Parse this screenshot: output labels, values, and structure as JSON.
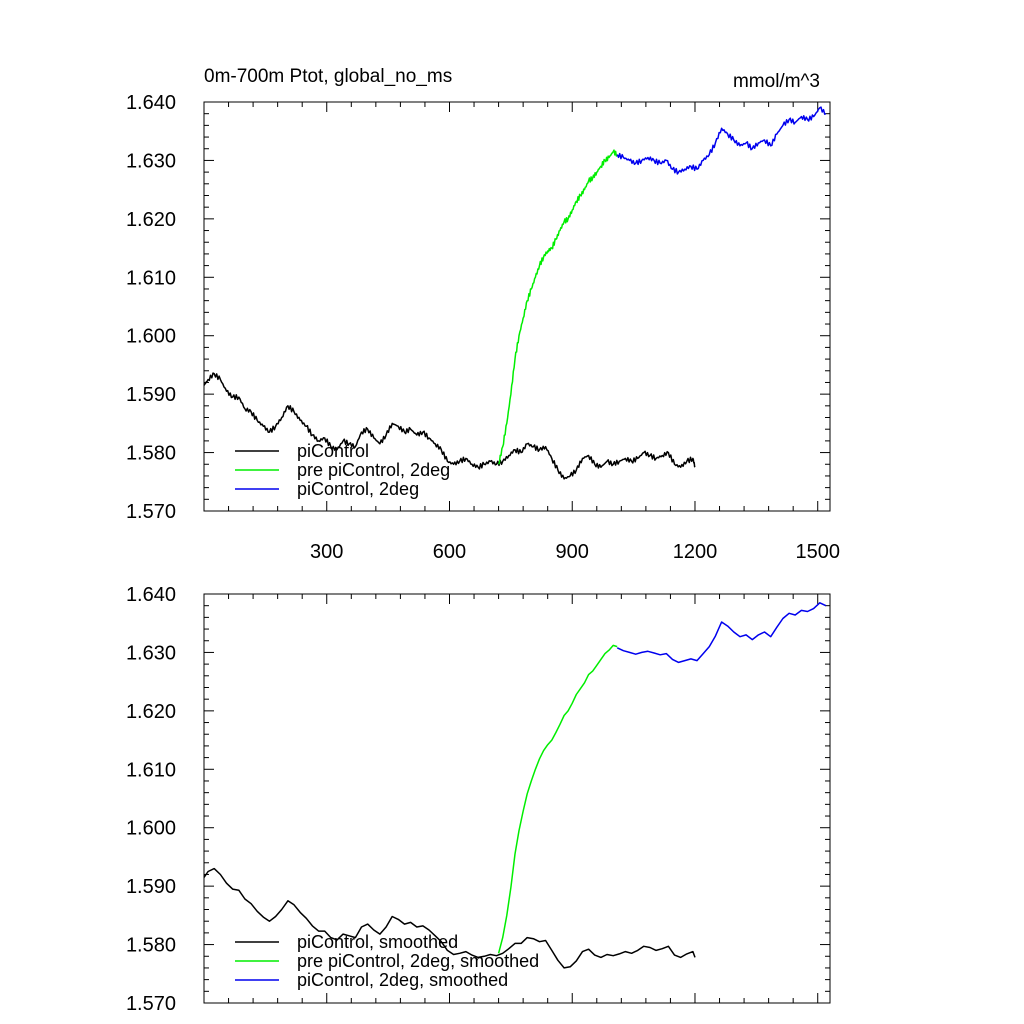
{
  "chart_data": [
    {
      "type": "line",
      "title": "0m-700m Ptot, global_no_ms",
      "units_label": "mmol/m^3",
      "xlabel": "",
      "ylabel": "",
      "xlim": [
        0,
        1530
      ],
      "ylim": [
        1.57,
        1.64
      ],
      "x_ticks": [
        300,
        600,
        900,
        1200,
        1500
      ],
      "x_tick_labels": [
        "300",
        "600",
        "900",
        "1200",
        "1500"
      ],
      "y_ticks": [
        1.57,
        1.58,
        1.59,
        1.6,
        1.61,
        1.62,
        1.63,
        1.64
      ],
      "y_tick_labels": [
        "1.570",
        "1.580",
        "1.590",
        "1.600",
        "1.610",
        "1.620",
        "1.630",
        "1.640"
      ],
      "grid": false,
      "legend_position": "bottom-left",
      "series": [
        {
          "name": "piControl",
          "color": "#000000",
          "x": [
            0,
            10,
            25,
            40,
            55,
            70,
            85,
            100,
            115,
            130,
            145,
            160,
            175,
            190,
            205,
            220,
            235,
            250,
            265,
            280,
            295,
            310,
            325,
            340,
            355,
            370,
            385,
            400,
            415,
            430,
            445,
            460,
            475,
            490,
            505,
            520,
            535,
            550,
            565,
            580,
            595,
            610,
            625,
            640,
            655,
            670,
            685,
            700,
            715,
            730,
            745,
            760,
            775,
            790,
            805,
            820,
            835,
            850,
            865,
            880,
            895,
            910,
            925,
            940,
            955,
            970,
            985,
            1000,
            1015,
            1030,
            1045,
            1060,
            1075,
            1090,
            1105,
            1120,
            1135,
            1150,
            1165,
            1180,
            1195,
            1200
          ],
          "y": [
            1.5915,
            1.5925,
            1.5935,
            1.5925,
            1.5905,
            1.5895,
            1.5895,
            1.5875,
            1.587,
            1.5855,
            1.5845,
            1.5835,
            1.5845,
            1.586,
            1.588,
            1.587,
            1.5855,
            1.5845,
            1.583,
            1.582,
            1.5825,
            1.581,
            1.5805,
            1.582,
            1.5815,
            1.581,
            1.5835,
            1.584,
            1.5825,
            1.5815,
            1.583,
            1.585,
            1.5845,
            1.5835,
            1.584,
            1.583,
            1.5835,
            1.5825,
            1.5815,
            1.5805,
            1.5785,
            1.578,
            1.5785,
            1.579,
            1.578,
            1.5775,
            1.578,
            1.5785,
            1.578,
            1.5785,
            1.5795,
            1.5805,
            1.58,
            1.5815,
            1.581,
            1.5805,
            1.581,
            1.579,
            1.577,
            1.5755,
            1.576,
            1.577,
            1.579,
            1.5795,
            1.578,
            1.5775,
            1.5785,
            1.578,
            1.5785,
            1.579,
            1.5785,
            1.579,
            1.58,
            1.5795,
            1.579,
            1.5795,
            1.58,
            1.578,
            1.5775,
            1.5785,
            1.579,
            1.5775
          ]
        },
        {
          "name": "pre piControl, 2deg",
          "color": "#00ee00",
          "x": [
            720,
            730,
            740,
            750,
            760,
            770,
            780,
            790,
            800,
            810,
            820,
            830,
            840,
            850,
            860,
            870,
            880,
            890,
            900,
            910,
            920,
            930,
            940,
            950,
            960,
            970,
            980,
            990,
            1000,
            1010
          ],
          "y": [
            1.578,
            1.581,
            1.585,
            1.59,
            1.596,
            1.6,
            1.603,
            1.606,
            1.608,
            1.61,
            1.612,
            1.6135,
            1.6145,
            1.615,
            1.6165,
            1.618,
            1.6195,
            1.62,
            1.6215,
            1.623,
            1.624,
            1.625,
            1.6265,
            1.627,
            1.628,
            1.629,
            1.63,
            1.6305,
            1.6315,
            1.631
          ]
        },
        {
          "name": "piControl, 2deg",
          "color": "#0000ee",
          "x": [
            1010,
            1025,
            1040,
            1055,
            1070,
            1085,
            1100,
            1115,
            1130,
            1145,
            1160,
            1175,
            1190,
            1205,
            1220,
            1235,
            1250,
            1265,
            1280,
            1295,
            1310,
            1325,
            1340,
            1355,
            1370,
            1385,
            1400,
            1415,
            1430,
            1445,
            1460,
            1475,
            1490,
            1505,
            1520
          ],
          "y": [
            1.631,
            1.6305,
            1.63,
            1.6295,
            1.63,
            1.6305,
            1.63,
            1.6295,
            1.63,
            1.6285,
            1.628,
            1.6285,
            1.629,
            1.6285,
            1.63,
            1.631,
            1.633,
            1.6355,
            1.6345,
            1.6335,
            1.6325,
            1.633,
            1.632,
            1.633,
            1.6335,
            1.6325,
            1.6345,
            1.636,
            1.637,
            1.6365,
            1.6375,
            1.637,
            1.6375,
            1.639,
            1.638
          ]
        }
      ]
    },
    {
      "type": "line",
      "xlim": [
        0,
        1530
      ],
      "ylim": [
        1.57,
        1.64
      ],
      "x_ticks": [
        300,
        600,
        900,
        1200,
        1500
      ],
      "y_ticks": [
        1.57,
        1.58,
        1.59,
        1.6,
        1.61,
        1.62,
        1.63,
        1.64
      ],
      "y_tick_labels": [
        "1.570",
        "1.580",
        "1.590",
        "1.600",
        "1.610",
        "1.620",
        "1.630",
        "1.640"
      ],
      "grid": false,
      "legend_position": "bottom-left",
      "series": [
        {
          "name": "piControl, smoothed",
          "color": "#000000",
          "x": [
            0,
            10,
            25,
            40,
            55,
            70,
            85,
            100,
            115,
            130,
            145,
            160,
            175,
            190,
            205,
            220,
            235,
            250,
            265,
            280,
            295,
            310,
            325,
            340,
            355,
            370,
            385,
            400,
            415,
            430,
            445,
            460,
            475,
            490,
            505,
            520,
            535,
            550,
            565,
            580,
            595,
            610,
            625,
            640,
            655,
            670,
            685,
            700,
            715,
            730,
            745,
            760,
            775,
            790,
            805,
            820,
            835,
            850,
            865,
            880,
            895,
            910,
            925,
            940,
            955,
            970,
            985,
            1000,
            1015,
            1030,
            1045,
            1060,
            1075,
            1090,
            1105,
            1120,
            1135,
            1150,
            1165,
            1180,
            1195,
            1200
          ],
          "y": [
            1.5915,
            1.5925,
            1.593,
            1.592,
            1.5905,
            1.5895,
            1.5893,
            1.5878,
            1.587,
            1.5857,
            1.5847,
            1.584,
            1.5848,
            1.586,
            1.5875,
            1.5868,
            1.5855,
            1.5845,
            1.5832,
            1.5823,
            1.5823,
            1.5812,
            1.5808,
            1.5818,
            1.5815,
            1.5812,
            1.583,
            1.5835,
            1.5825,
            1.5818,
            1.583,
            1.5848,
            1.5843,
            1.5835,
            1.5838,
            1.583,
            1.5832,
            1.5825,
            1.5815,
            1.5805,
            1.579,
            1.5783,
            1.5785,
            1.5788,
            1.5782,
            1.5778,
            1.578,
            1.5783,
            1.5781,
            1.5785,
            1.5793,
            1.5802,
            1.5802,
            1.5812,
            1.581,
            1.5805,
            1.5807,
            1.579,
            1.5773,
            1.576,
            1.5762,
            1.5772,
            1.5788,
            1.5792,
            1.5782,
            1.5778,
            1.5783,
            1.5781,
            1.5784,
            1.5788,
            1.5785,
            1.579,
            1.5797,
            1.5795,
            1.579,
            1.5793,
            1.5797,
            1.5782,
            1.5778,
            1.5784,
            1.5788,
            1.5778
          ]
        },
        {
          "name": "pre piControl, 2deg, smoothed",
          "color": "#00ee00",
          "x": [
            720,
            730,
            740,
            750,
            760,
            770,
            780,
            790,
            800,
            810,
            820,
            830,
            840,
            850,
            860,
            870,
            880,
            890,
            900,
            910,
            920,
            930,
            940,
            950,
            960,
            970,
            980,
            990,
            1000,
            1010
          ],
          "y": [
            1.5785,
            1.5812,
            1.585,
            1.5898,
            1.5955,
            1.5995,
            1.6028,
            1.6058,
            1.608,
            1.61,
            1.6118,
            1.6132,
            1.6142,
            1.615,
            1.6163,
            1.6177,
            1.6192,
            1.62,
            1.6213,
            1.6228,
            1.6238,
            1.6248,
            1.6262,
            1.6268,
            1.6278,
            1.6288,
            1.6298,
            1.6304,
            1.6312,
            1.631
          ]
        },
        {
          "name": "piControl, 2deg, smoothed",
          "color": "#0000ee",
          "x": [
            1010,
            1025,
            1040,
            1055,
            1070,
            1085,
            1100,
            1115,
            1130,
            1145,
            1160,
            1175,
            1190,
            1205,
            1220,
            1235,
            1250,
            1265,
            1280,
            1295,
            1310,
            1325,
            1340,
            1355,
            1370,
            1385,
            1400,
            1415,
            1430,
            1445,
            1460,
            1475,
            1490,
            1505,
            1520
          ],
          "y": [
            1.6308,
            1.6303,
            1.63,
            1.6297,
            1.63,
            1.6302,
            1.6299,
            1.6296,
            1.6298,
            1.6288,
            1.6283,
            1.6286,
            1.6289,
            1.6286,
            1.6298,
            1.631,
            1.6328,
            1.6352,
            1.6345,
            1.6335,
            1.6327,
            1.633,
            1.6322,
            1.633,
            1.6335,
            1.6327,
            1.6343,
            1.6358,
            1.6367,
            1.6364,
            1.6372,
            1.637,
            1.6375,
            1.6385,
            1.638
          ]
        }
      ]
    }
  ]
}
